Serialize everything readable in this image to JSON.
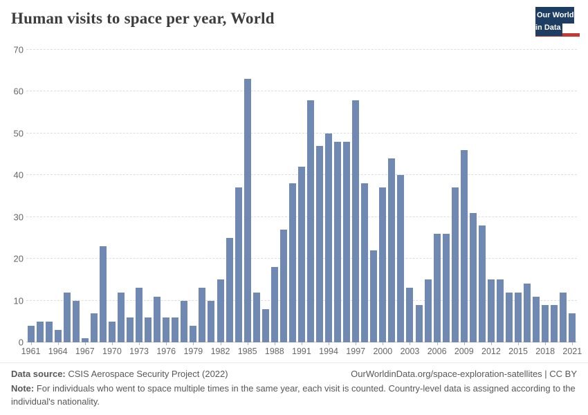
{
  "header": {
    "title": "Human visits to space per year, World",
    "logo_line1": "Our World",
    "logo_line2": "in Data"
  },
  "chart_data": {
    "type": "bar",
    "title": "Human visits to space per year, World",
    "xlabel": "",
    "ylabel": "",
    "ylim": [
      0,
      70
    ],
    "yticks": [
      0,
      10,
      20,
      30,
      40,
      50,
      60,
      70
    ],
    "grid": true,
    "legend": "none",
    "bar_color": "#7089b3",
    "x": [
      1961,
      1962,
      1963,
      1964,
      1965,
      1966,
      1967,
      1968,
      1969,
      1970,
      1971,
      1972,
      1973,
      1974,
      1975,
      1976,
      1977,
      1978,
      1979,
      1980,
      1981,
      1982,
      1983,
      1984,
      1985,
      1986,
      1987,
      1988,
      1989,
      1990,
      1991,
      1992,
      1993,
      1994,
      1995,
      1996,
      1997,
      1998,
      1999,
      2000,
      2001,
      2002,
      2003,
      2004,
      2005,
      2006,
      2007,
      2008,
      2009,
      2010,
      2011,
      2012,
      2013,
      2014,
      2015,
      2016,
      2017,
      2018,
      2019,
      2020,
      2021
    ],
    "values": [
      4,
      5,
      5,
      3,
      12,
      10,
      1,
      7,
      23,
      5,
      12,
      6,
      13,
      6,
      11,
      6,
      6,
      10,
      4,
      13,
      10,
      15,
      25,
      37,
      63,
      12,
      8,
      18,
      27,
      38,
      42,
      58,
      47,
      50,
      48,
      48,
      58,
      38,
      22,
      37,
      44,
      40,
      13,
      9,
      15,
      26,
      26,
      37,
      46,
      31,
      28,
      15,
      15,
      12,
      12,
      14,
      11,
      9,
      9,
      12,
      7
    ],
    "xtick_labels": [
      "1961",
      "1964",
      "1967",
      "1970",
      "1973",
      "1976",
      "1979",
      "1982",
      "1985",
      "1988",
      "1991",
      "1994",
      "1997",
      "2000",
      "2003",
      "2006",
      "2009",
      "2012",
      "2015",
      "2018",
      "2021"
    ]
  },
  "footer": {
    "datasource_label": "Data source:",
    "datasource_value": " CSIS Aerospace Security Project (2022)",
    "link": "OurWorldinData.org/space-exploration-satellites | CC BY",
    "note_label": "Note:",
    "note_value": " For individuals who went to space multiple times in the same year, each visit is counted. Country-level data is assigned according to the individual's nationality."
  },
  "colors": {
    "bar": "#7089b3",
    "logo_bg": "#1d3d63",
    "logo_stripe": "#c43a33",
    "grid": "#dddddd",
    "zero_line": "#c8c8c8",
    "axis_text": "#666666",
    "title_text": "#3d3d3d",
    "footer_text": "#575757",
    "divider": "#e7e7e7"
  }
}
